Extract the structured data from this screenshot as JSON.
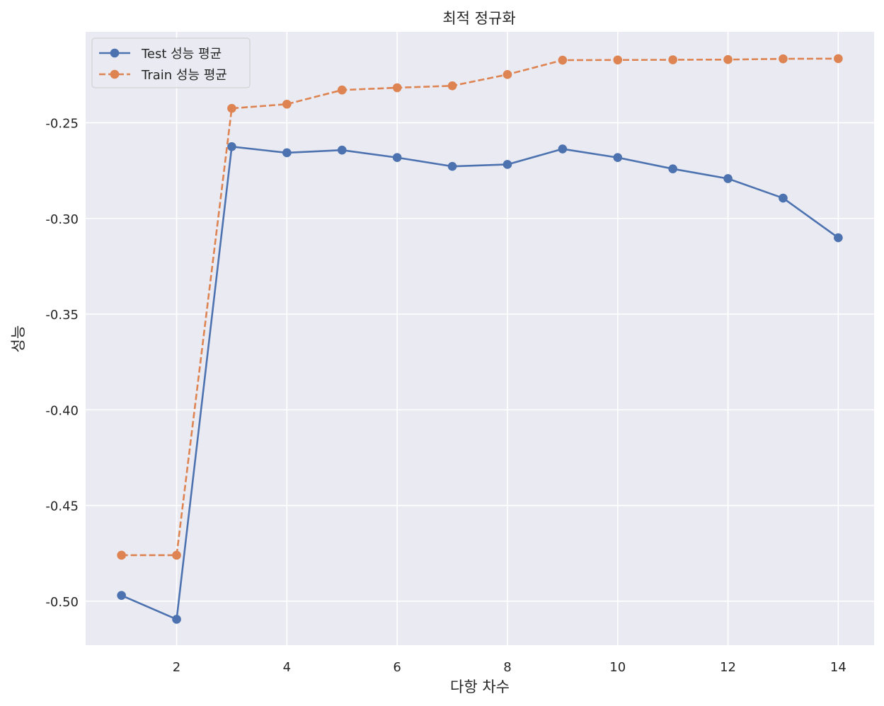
{
  "chart_data": {
    "type": "line",
    "title": "최적 정규화",
    "xlabel": "다항 차수",
    "ylabel": "성능",
    "x": [
      1,
      2,
      3,
      4,
      5,
      6,
      7,
      8,
      9,
      10,
      11,
      12,
      13,
      14
    ],
    "xlim": [
      0.35,
      14.65
    ],
    "ylim": [
      -0.523,
      -0.2025
    ],
    "xticks": [
      2,
      4,
      6,
      8,
      10,
      12,
      14
    ],
    "xtick_labels": [
      "2",
      "4",
      "6",
      "8",
      "10",
      "12",
      "14"
    ],
    "yticks": [
      -0.5,
      -0.45,
      -0.4,
      -0.35,
      -0.3,
      -0.25
    ],
    "ytick_labels": [
      "-0.50",
      "-0.45",
      "-0.40",
      "-0.35",
      "-0.30",
      "-0.25"
    ],
    "grid": true,
    "legend_position": "top-left",
    "series": [
      {
        "name": "Test 성능 평균",
        "color": "#4c72b0",
        "linestyle": "solid",
        "marker": "circle",
        "values": [
          -0.497,
          -0.5095,
          -0.2625,
          -0.2657,
          -0.2643,
          -0.2682,
          -0.2728,
          -0.2718,
          -0.2637,
          -0.2682,
          -0.2741,
          -0.2792,
          -0.2894,
          -0.3101
        ]
      },
      {
        "name": "Train 성능 평균",
        "color": "#dd8452",
        "linestyle": "dashed",
        "marker": "circle",
        "values": [
          -0.476,
          -0.476,
          -0.2425,
          -0.2403,
          -0.2329,
          -0.2317,
          -0.2307,
          -0.2248,
          -0.2173,
          -0.2172,
          -0.2171,
          -0.217,
          -0.2166,
          -0.2165
        ]
      }
    ]
  },
  "colors": {
    "plot_background": "#eaeaf2",
    "grid": "#ffffff"
  }
}
